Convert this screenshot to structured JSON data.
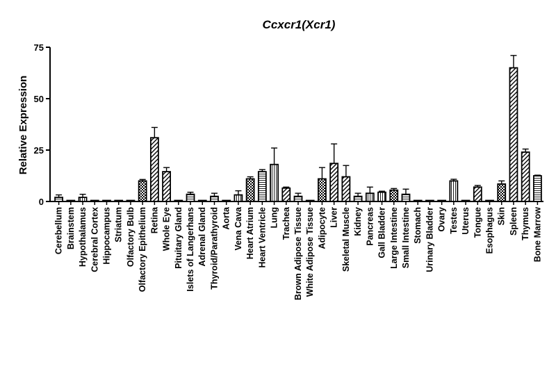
{
  "chart_data": {
    "type": "bar",
    "title": "Ccxcr1(Xcr1)",
    "ylabel": "Relative Expression",
    "xlabel": "",
    "ylim": [
      0,
      75
    ],
    "yticks": [
      0,
      25,
      50,
      75
    ],
    "grid": false,
    "error_bars": true,
    "categories": [
      "Cerebellum",
      "Brainstem",
      "Hypothalamus",
      "Cerebral Cortex",
      "Hippocampus",
      "Striatum",
      "Olfactory Bulb",
      "Olfactory Epithelium",
      "Retina",
      "Whole Eye",
      "Pituitary Gland",
      "Islets of Langerhans",
      "Adrenal Gland",
      "Thyroid/Parathyroid",
      "Aorta",
      "Vena Cava",
      "Heart Atrium",
      "Heart Ventricle",
      "Lung",
      "Trachea",
      "Brown Adipose Tissue",
      "White Adipose Tissue",
      "Adipocyte",
      "Liver",
      "Skeletal Muscle",
      "Kidney",
      "Pancreas",
      "Gall Bladder",
      "Large Intestine",
      "Small Intestine",
      "Stomach",
      "Urinary Bladder",
      "Ovary",
      "Testes",
      "Uterus",
      "Tongue",
      "Esophagus",
      "Skin",
      "Spleen",
      "Thymus",
      "Bone Marrow"
    ],
    "values": [
      2.0,
      0.4,
      2.0,
      0.3,
      0.3,
      0.3,
      0.3,
      10.0,
      31.0,
      14.5,
      0.3,
      3.5,
      0.3,
      2.5,
      0.4,
      3.2,
      11.0,
      14.5,
      18.0,
      6.5,
      2.5,
      0.4,
      11.0,
      18.5,
      12.0,
      2.5,
      4.0,
      4.5,
      5.5,
      3.5,
      0.3,
      0.3,
      0.3,
      10.0,
      0.3,
      7.0,
      0.3,
      8.5,
      65.0,
      24.0,
      12.5
    ],
    "errors": [
      1.2,
      0.2,
      1.5,
      0.2,
      0.2,
      0.2,
      0.2,
      0.7,
      5.0,
      2.0,
      0.2,
      1.0,
      0.2,
      1.5,
      0.2,
      2.0,
      1.0,
      1.0,
      8.0,
      0.5,
      1.5,
      0.2,
      5.5,
      9.5,
      5.5,
      1.5,
      3.0,
      0.5,
      0.8,
      2.5,
      0.2,
      0.2,
      0.2,
      0.8,
      0.2,
      0.8,
      0.2,
      1.5,
      6.0,
      1.5,
      0.3
    ],
    "patterns": [
      "hlines",
      "solid",
      "vlines",
      "solid",
      "solid",
      "solid",
      "solid",
      "check",
      "diag",
      "diag",
      "solid",
      "hlines",
      "solid",
      "hlines",
      "solid",
      "vlines",
      "check",
      "hlines",
      "vlines",
      "diag",
      "hlines",
      "solid",
      "check",
      "diag",
      "diag",
      "hlines",
      "vlines",
      "vlines",
      "check",
      "hlines",
      "solid",
      "solid",
      "solid",
      "vlines",
      "solid",
      "diag",
      "solid",
      "check",
      "diag",
      "diag",
      "hlines"
    ]
  }
}
